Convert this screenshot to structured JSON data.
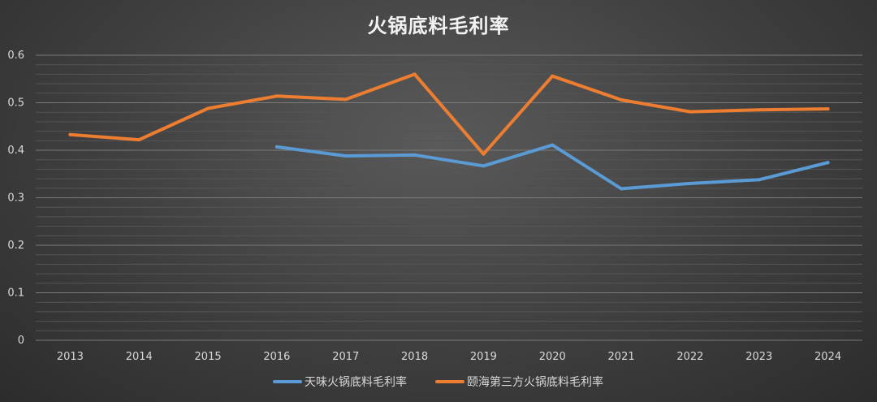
{
  "chart_data": {
    "type": "line",
    "title": "火锅底料毛利率",
    "xlabel": "",
    "ylabel": "",
    "categories": [
      "2013",
      "2014",
      "2015",
      "2016",
      "2017",
      "2018",
      "2019",
      "2020",
      "2021",
      "2022",
      "2023",
      "2024"
    ],
    "ylim": [
      0,
      0.6
    ],
    "yticks": [
      "0",
      "0.1",
      "0.2",
      "0.3",
      "0.4",
      "0.5",
      "0.6"
    ],
    "grid": true,
    "legend_position": "bottom",
    "series": [
      {
        "name": "天味火锅底料毛利率",
        "color": "#5b9bd5",
        "values": [
          null,
          null,
          null,
          0.407,
          0.388,
          0.39,
          0.367,
          0.411,
          0.319,
          0.33,
          0.338,
          0.374
        ]
      },
      {
        "name": "颐海第三方火锅底料毛利率",
        "color": "#ed7d31",
        "values": [
          0.433,
          0.422,
          0.488,
          0.514,
          0.507,
          0.56,
          0.392,
          0.556,
          0.506,
          0.481,
          0.485,
          0.487
        ]
      }
    ]
  }
}
